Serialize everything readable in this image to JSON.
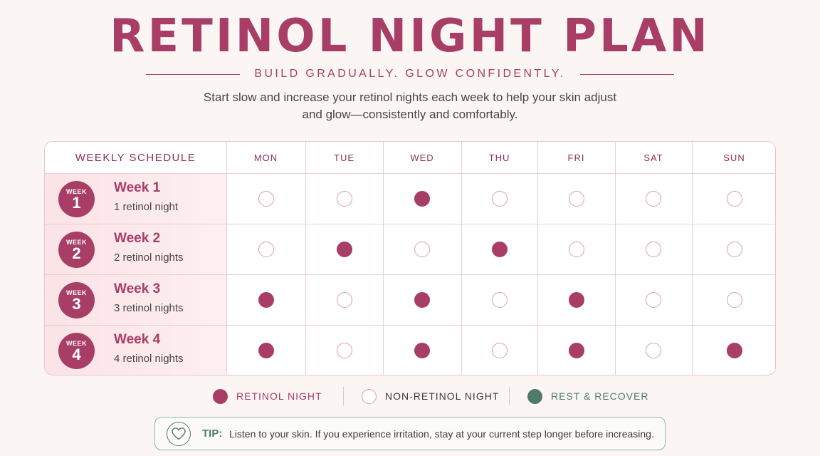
{
  "header": {
    "title": "RETINOL NIGHT PLAN",
    "subtitle": "BUILD GRADUALLY. GLOW CONFIDENTLY.",
    "intro_line1": "Start slow and increase your retinol nights each week to help your skin adjust",
    "intro_line2": "and glow—consistently and comfortably."
  },
  "schedule": {
    "header_label": "WEEKLY SCHEDULE",
    "days": [
      "MON",
      "TUE",
      "WED",
      "THU",
      "FRI",
      "SAT",
      "SUN"
    ],
    "weeks": [
      {
        "badge_word": "WEEK",
        "badge_num": "1",
        "title": "Week 1",
        "subtitle": "1 retinol night",
        "nights": [
          false,
          false,
          true,
          false,
          false,
          false,
          false
        ]
      },
      {
        "badge_word": "WEEK",
        "badge_num": "2",
        "title": "Week 2",
        "subtitle": "2 retinol nights",
        "nights": [
          false,
          true,
          false,
          true,
          false,
          false,
          false
        ]
      },
      {
        "badge_word": "WEEK",
        "badge_num": "3",
        "title": "Week 3",
        "subtitle": "3 retinol nights",
        "nights": [
          true,
          false,
          true,
          false,
          true,
          false,
          false
        ]
      },
      {
        "badge_word": "WEEK",
        "badge_num": "4",
        "title": "Week 4",
        "subtitle": "4 retinol nights",
        "nights": [
          true,
          false,
          true,
          false,
          true,
          false,
          true
        ]
      }
    ]
  },
  "legend": {
    "retinol": "RETINOL NIGHT",
    "non_retinol": "NON-RETINOL NIGHT",
    "rest": "REST & RECOVER"
  },
  "tip": {
    "label": "TIP:",
    "text": "Listen to your skin. If you experience irritation, stay at your current step longer before increasing.",
    "icon": "heart-icon"
  },
  "colors": {
    "accent": "#a83d65",
    "dot_outline": "#d99cb1",
    "rest": "#4f7b69",
    "background": "#fbf6f4"
  }
}
